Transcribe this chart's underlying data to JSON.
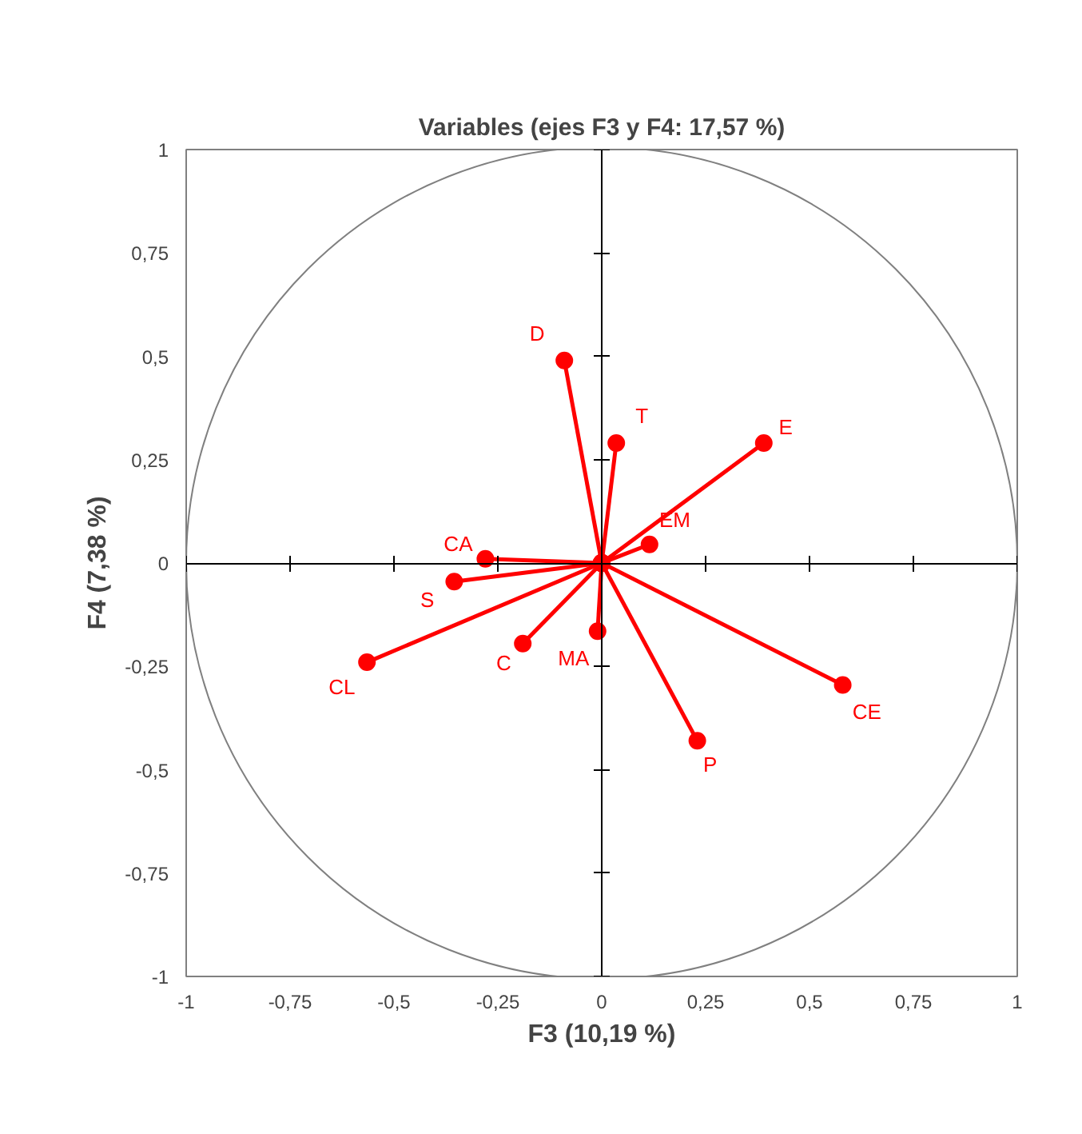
{
  "chart_data": {
    "type": "line",
    "title": "Variables (ejes F3 y F4: 17,57 %)",
    "xlabel": "F3 (10,19 %)",
    "ylabel": "F4 (7,38 %)",
    "xlim": [
      -1,
      1
    ],
    "ylim": [
      -1,
      1
    ],
    "xticks": [
      -1,
      {
        "value": -0.75,
        "label": "-0,75"
      },
      {
        "value": -0.5,
        "label": "-0,5"
      },
      {
        "value": -0.25,
        "label": "-0,25"
      },
      0,
      {
        "value": 0.25,
        "label": "0,25"
      },
      {
        "value": 0.5,
        "label": "0,5"
      },
      {
        "value": 0.75,
        "label": "0,75"
      },
      1
    ],
    "yticks": [
      -1,
      {
        "value": -0.75,
        "label": "-0,75"
      },
      {
        "value": -0.5,
        "label": "-0,5"
      },
      {
        "value": -0.25,
        "label": "-0,25"
      },
      0,
      {
        "value": 0.25,
        "label": "0,25"
      },
      {
        "value": 0.5,
        "label": "0,5"
      },
      {
        "value": 0.75,
        "label": "0,75"
      },
      1
    ],
    "marker": "circle",
    "series": [
      {
        "name": "D",
        "color": "#ff0000",
        "x": [
          0,
          -0.09
        ],
        "values": [
          0,
          0.49
        ]
      },
      {
        "name": "T",
        "color": "#ff0000",
        "x": [
          0,
          0.035
        ],
        "values": [
          0,
          0.29
        ]
      },
      {
        "name": "E",
        "color": "#ff0000",
        "x": [
          0,
          0.39
        ],
        "values": [
          0,
          0.29
        ]
      },
      {
        "name": "EM",
        "color": "#ff0000",
        "x": [
          0,
          0.115
        ],
        "values": [
          0,
          0.045
        ]
      },
      {
        "name": "CA",
        "color": "#ff0000",
        "x": [
          0,
          -0.28
        ],
        "values": [
          0,
          0.01
        ]
      },
      {
        "name": "S",
        "color": "#ff0000",
        "x": [
          0,
          -0.355
        ],
        "values": [
          0,
          -0.045
        ]
      },
      {
        "name": "CL",
        "color": "#ff0000",
        "x": [
          0,
          -0.565
        ],
        "values": [
          0,
          -0.24
        ]
      },
      {
        "name": "C",
        "color": "#ff0000",
        "x": [
          0,
          -0.19
        ],
        "values": [
          0,
          -0.195
        ]
      },
      {
        "name": "MA",
        "color": "#ff0000",
        "x": [
          0,
          -0.01
        ],
        "values": [
          0,
          -0.165
        ]
      },
      {
        "name": "CE",
        "color": "#ff0000",
        "x": [
          0,
          0.58
        ],
        "values": [
          0,
          -0.295
        ]
      },
      {
        "name": "P",
        "color": "#ff0000",
        "x": [
          0,
          0.23
        ],
        "values": [
          0,
          -0.43
        ]
      }
    ]
  }
}
